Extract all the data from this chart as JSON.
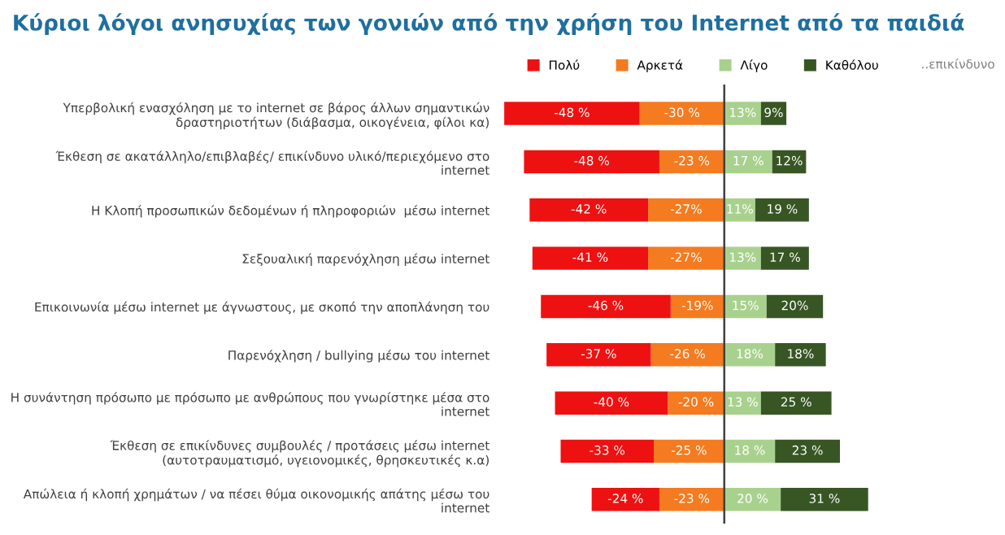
{
  "chart_data": {
    "type": "bar",
    "orientation": "horizontal",
    "stacked": true,
    "title": "Κύριοι λόγοι ανησυχίας των γονιών από την χρήση του Internet από τα παιδιά",
    "categories": [
      "Υπερβολική ενασχόληση με το internet σε βάρος άλλων σημαντικών\nδραστηριοτήτων (διάβασμα, οικογένεια, φίλοι κα)",
      "Έκθεση σε ακατάλληλο/επιβλαβές/ επικίνδυνο υλικό/περιεχόμενο στο\ninternet",
      "Η Κλοπή προσωπικών δεδομένων ή πληροφοριών  μέσω internet",
      "Σεξουαλική παρενόχληση μέσω internet",
      "Επικοινωνία μέσω internet με άγνωστους, με σκοπό την αποπλάνηση του",
      "Παρενόχληση / bullying μέσω του internet",
      "Η συνάντηση πρόσωπο με πρόσωπο με ανθρώπους που γνωρίστηκε μέσα στο\ninternet",
      "Έκθεση σε επικίνδυνες συμβουλές / προτάσεις μέσω internet\n(αυτοτραυματισμό, υγειονομικές, θρησκευτικές κ.α)",
      "Απώλεια ή κλοπή χρημάτων / να πέσει θύμα οικονομικής απάτης μέσω του\ninternet"
    ],
    "series": [
      {
        "name": "Αρκετά",
        "color": "#f47b20",
        "values": [
          -30,
          -23,
          -27,
          -27,
          -19,
          -26,
          -20,
          -25,
          -23
        ],
        "value_labels": [
          "-30 %",
          "-23 %",
          "-27%",
          "-27%",
          "-19%",
          "-26 %",
          "-20 %",
          "-25 %",
          "-23 %"
        ]
      },
      {
        "name": "Πολύ",
        "color": "#ee1111",
        "values": [
          -48,
          -48,
          -42,
          -41,
          -46,
          -37,
          -40,
          -33,
          -24
        ],
        "value_labels": [
          "-48 %",
          "-48 %",
          "-42 %",
          "-41 %",
          "-46 %",
          "-37 %",
          "-40 %",
          "-33 %",
          "-24 %"
        ]
      },
      {
        "name": "Λίγο",
        "color": "#a9d18e",
        "values": [
          13,
          17,
          11,
          13,
          15,
          18,
          13,
          18,
          20
        ],
        "value_labels": [
          "13%",
          "17 %",
          "11%",
          "13%",
          "15%",
          "18%",
          "13 %",
          "18 %",
          "20 %"
        ]
      },
      {
        "name": "Καθόλου",
        "color": "#375623",
        "values": [
          9,
          12,
          19,
          17,
          20,
          18,
          25,
          23,
          31
        ],
        "value_labels": [
          "9%",
          "12%",
          "19 %",
          "17 %",
          "20%",
          "18%",
          "25 %",
          "23 %",
          "31 %"
        ]
      }
    ],
    "tick_labels": "y",
    "legend": "top right",
    "ref_lines": [
      {
        "axis": "x",
        "value": 0,
        "color": "#404040"
      }
    ],
    "annotations": [
      "..επικίνδυνο"
    ]
  }
}
